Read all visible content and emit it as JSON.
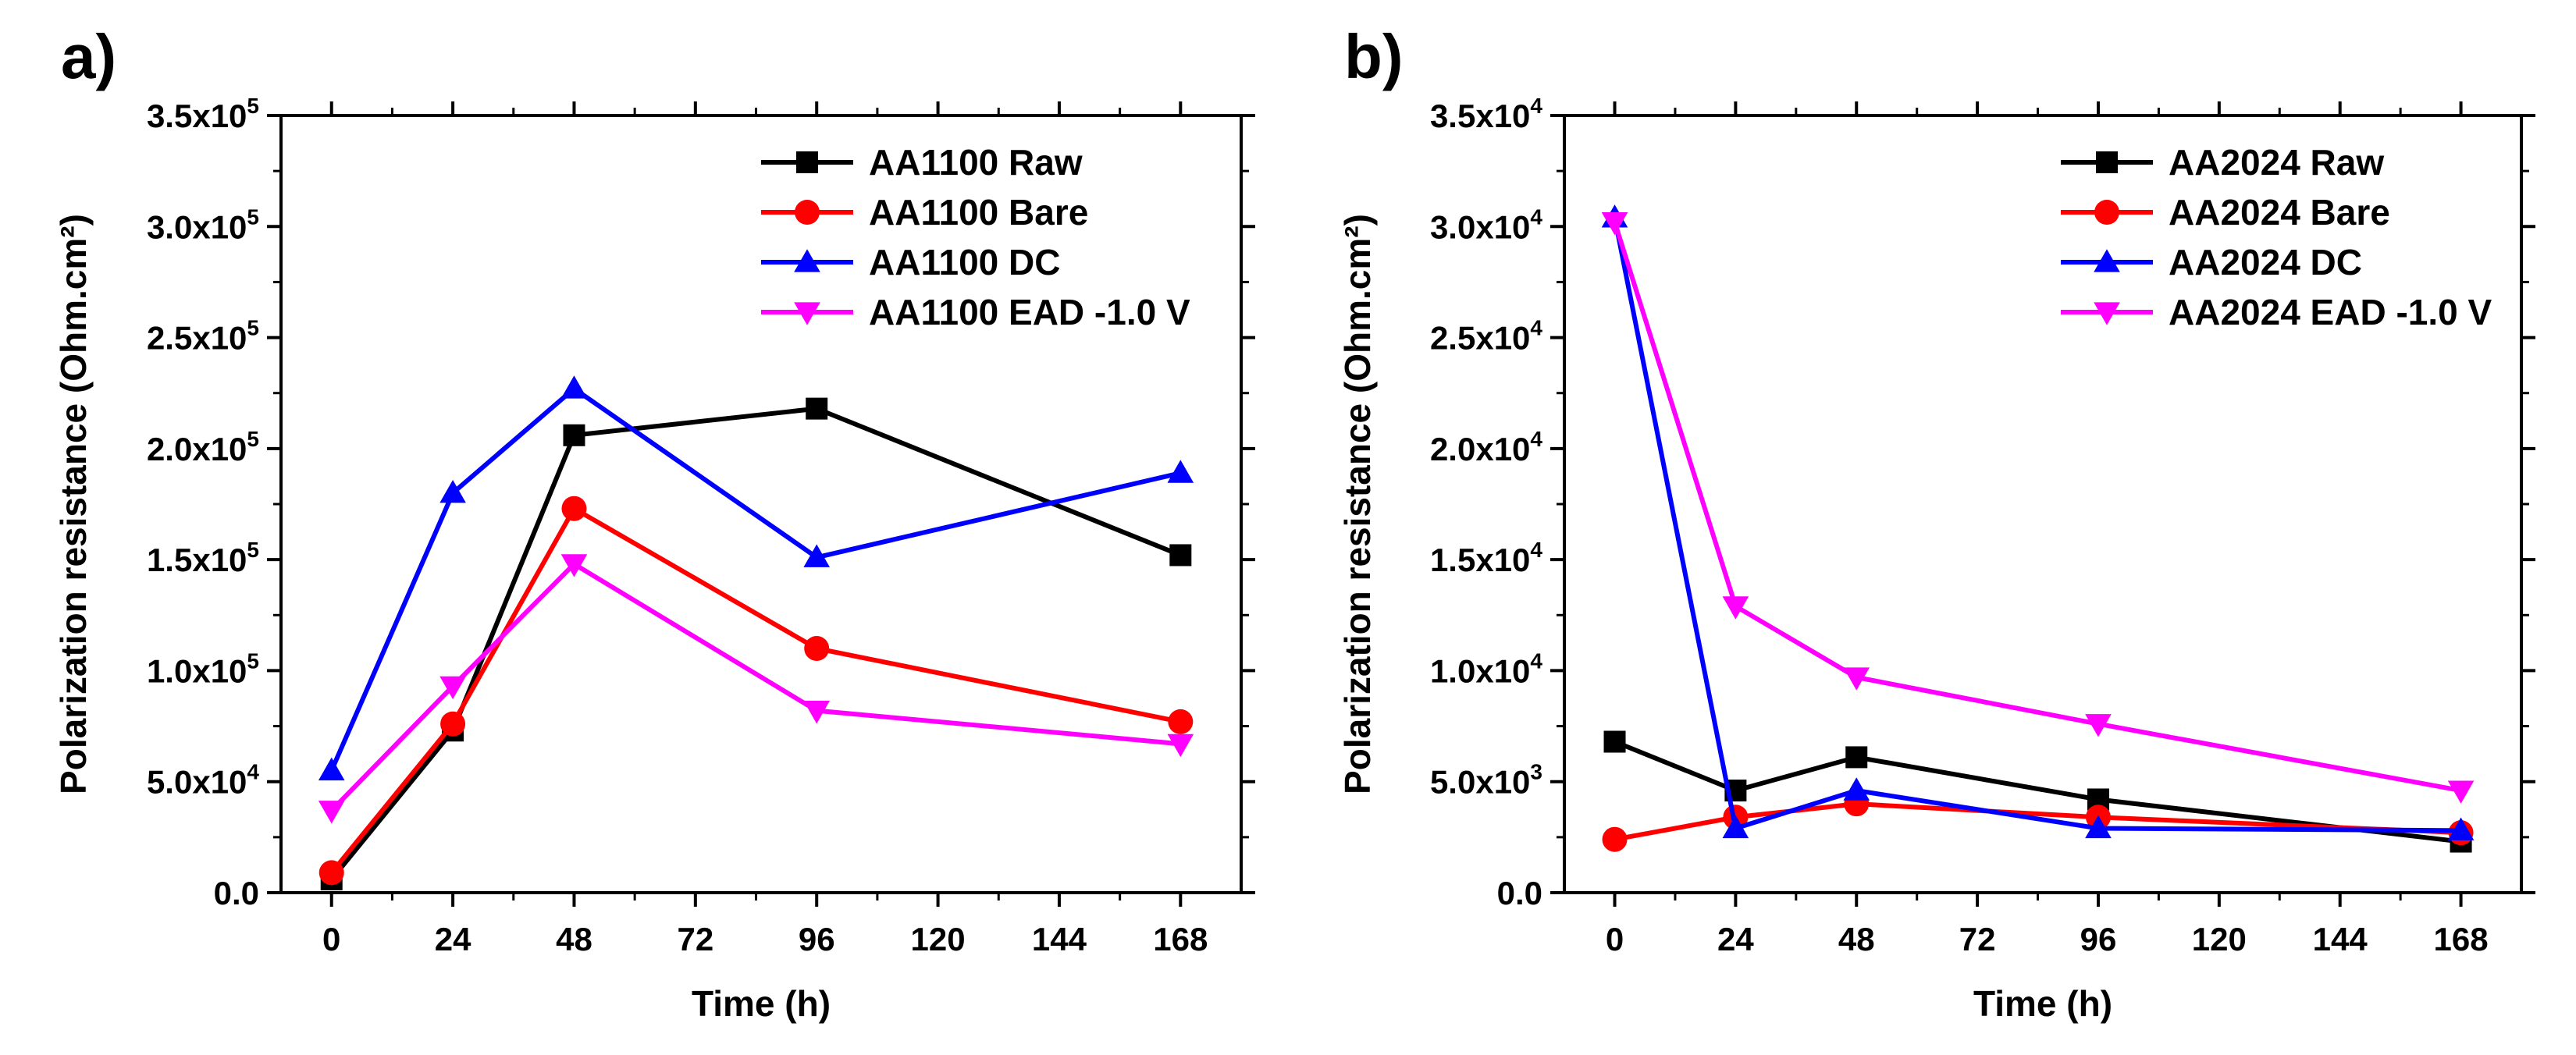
{
  "chart_data": [
    {
      "type": "line",
      "panel_label": "a)",
      "xlabel": "Time (h)",
      "ylabel": "Polarization resistance (Ohm.cm²)",
      "xlim": [
        -10,
        180
      ],
      "ylim": [
        0,
        350000
      ],
      "x_ticks": [
        0,
        24,
        48,
        72,
        96,
        120,
        144,
        168
      ],
      "x_tick_labels": [
        "0",
        "24",
        "48",
        "72",
        "96",
        "120",
        "144",
        "168"
      ],
      "y_ticks": [
        0,
        50000,
        100000,
        150000,
        200000,
        250000,
        300000,
        350000
      ],
      "y_tick_mantissa": [
        "0.0",
        "5.0x10",
        "1.0x10",
        "1.5x10",
        "2.0x10",
        "2.5x10",
        "3.0x10",
        "3.5x10"
      ],
      "y_tick_exponent": [
        "",
        "4",
        "5",
        "5",
        "5",
        "5",
        "5",
        "5"
      ],
      "legend_position": "top-right",
      "grid": false,
      "x": [
        0,
        24,
        48,
        96,
        168
      ],
      "series": [
        {
          "name": "AA1100 Raw",
          "color": "#000000",
          "marker": "square",
          "values": [
            6000,
            73000,
            206000,
            218000,
            152000
          ]
        },
        {
          "name": "AA1100 Bare",
          "color": "#ff0000",
          "marker": "circle",
          "values": [
            9000,
            76000,
            173000,
            110000,
            77000
          ]
        },
        {
          "name": "AA1100 DC",
          "color": "#0000ff",
          "marker": "triangle-up",
          "values": [
            55000,
            180000,
            227000,
            151000,
            189000
          ]
        },
        {
          "name": "AA1100 EAD -1.0 V",
          "color": "#ff00ff",
          "marker": "triangle-down",
          "values": [
            37000,
            93000,
            148000,
            82000,
            67000
          ]
        }
      ]
    },
    {
      "type": "line",
      "panel_label": "b)",
      "xlabel": "Time (h)",
      "ylabel": "Polarization resistance (Ohm.cm²)",
      "xlim": [
        -10,
        180
      ],
      "ylim": [
        0,
        35000
      ],
      "x_ticks": [
        0,
        24,
        48,
        72,
        96,
        120,
        144,
        168
      ],
      "x_tick_labels": [
        "0",
        "24",
        "48",
        "72",
        "96",
        "120",
        "144",
        "168"
      ],
      "y_ticks": [
        0,
        5000,
        10000,
        15000,
        20000,
        25000,
        30000,
        35000
      ],
      "y_tick_mantissa": [
        "0.0",
        "5.0x10",
        "1.0x10",
        "1.5x10",
        "2.0x10",
        "2.5x10",
        "3.0x10",
        "3.5x10"
      ],
      "y_tick_exponent": [
        "",
        "3",
        "4",
        "4",
        "4",
        "4",
        "4",
        "4"
      ],
      "legend_position": "top-right",
      "grid": false,
      "x": [
        0,
        24,
        48,
        96,
        168
      ],
      "series": [
        {
          "name": "AA2024 Raw",
          "color": "#000000",
          "marker": "square",
          "values": [
            6800,
            4600,
            6100,
            4200,
            2300
          ]
        },
        {
          "name": "AA2024 Bare",
          "color": "#ff0000",
          "marker": "circle",
          "values": [
            2400,
            3400,
            4000,
            3400,
            2700
          ]
        },
        {
          "name": "AA2024 DC",
          "color": "#0000ff",
          "marker": "triangle-up",
          "values": [
            30400,
            2900,
            4600,
            2900,
            2800
          ]
        },
        {
          "name": "AA2024 EAD -1.0 V",
          "color": "#ff00ff",
          "marker": "triangle-down",
          "values": [
            30200,
            12900,
            9700,
            7600,
            4600
          ]
        }
      ]
    }
  ]
}
